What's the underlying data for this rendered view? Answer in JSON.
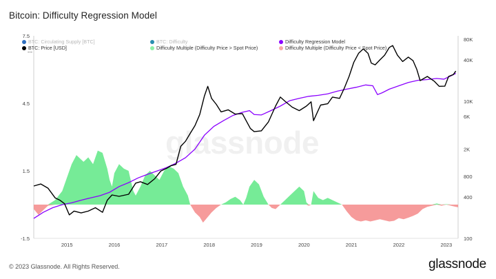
{
  "title": "Bitcoin: Difficulty Regression Model",
  "footer": {
    "copyright": "© 2023 Glassnode. All Rights Reserved.",
    "brand": "glassnode"
  },
  "watermark": "glassnode",
  "legend": [
    {
      "label": "BTC: Circulating Supply [BTC]",
      "color": "#2f6fbf",
      "muted": true
    },
    {
      "label": "BTC: Difficulty",
      "color": "#2a8fb0",
      "muted": true
    },
    {
      "label": "Difficulty Regression Model",
      "color": "#8a00ff",
      "muted": false
    },
    {
      "label": "BTC: Price [USD]",
      "color": "#000000",
      "muted": false
    },
    {
      "label": "Difficulty Multiple (Difficulty Price > Spot Price)",
      "color": "#8ef0a6",
      "muted": false
    },
    {
      "label": "Difficulty Multiple (Difficulty Price < Spot Price)",
      "color": "#f8a8a8",
      "muted": false
    }
  ],
  "legend_dash": "---",
  "colors": {
    "price": "#000000",
    "model": "#8a00ff",
    "positive": "#5ee885",
    "negative": "#f48a8a",
    "axis_text": "#444444",
    "grid": "#f0f0f0"
  },
  "chart_data": {
    "type": "line",
    "x_ticks": [
      "2015",
      "2016",
      "2017",
      "2018",
      "2019",
      "2020",
      "2021",
      "2022",
      "2023"
    ],
    "x_range": [
      2014.3,
      2023.25
    ],
    "left_axis": {
      "ticks": [
        "7.5",
        "4.5",
        "1.5",
        "-1.5"
      ],
      "values": [
        7.5,
        4.5,
        1.5,
        -1.5
      ],
      "range": [
        -1.5,
        7.5
      ]
    },
    "right_axis": {
      "scale": "log",
      "ticks": [
        "80K",
        "40K",
        "10K",
        "6K",
        "2K",
        "800",
        "400",
        "100"
      ],
      "values": [
        80000,
        40000,
        10000,
        6000,
        2000,
        800,
        400,
        100
      ],
      "range": [
        100,
        90000
      ]
    },
    "series": [
      {
        "name": "BTC: Price [USD]",
        "axis": "right",
        "points": [
          [
            2014.3,
            580
          ],
          [
            2014.45,
            620
          ],
          [
            2014.6,
            540
          ],
          [
            2014.75,
            390
          ],
          [
            2014.85,
            360
          ],
          [
            2014.95,
            320
          ],
          [
            2015.05,
            220
          ],
          [
            2015.15,
            250
          ],
          [
            2015.3,
            235
          ],
          [
            2015.45,
            250
          ],
          [
            2015.6,
            280
          ],
          [
            2015.75,
            240
          ],
          [
            2015.85,
            360
          ],
          [
            2015.95,
            430
          ],
          [
            2016.1,
            410
          ],
          [
            2016.3,
            440
          ],
          [
            2016.45,
            640
          ],
          [
            2016.55,
            670
          ],
          [
            2016.7,
            610
          ],
          [
            2016.85,
            740
          ],
          [
            2016.98,
            960
          ],
          [
            2017.1,
            1050
          ],
          [
            2017.2,
            1150
          ],
          [
            2017.3,
            1200
          ],
          [
            2017.4,
            2200
          ],
          [
            2017.5,
            2600
          ],
          [
            2017.6,
            3400
          ],
          [
            2017.7,
            4400
          ],
          [
            2017.8,
            6400
          ],
          [
            2017.9,
            12000
          ],
          [
            2017.97,
            16500
          ],
          [
            2018.05,
            11000
          ],
          [
            2018.15,
            9000
          ],
          [
            2018.25,
            7000
          ],
          [
            2018.4,
            7500
          ],
          [
            2018.55,
            6500
          ],
          [
            2018.7,
            6600
          ],
          [
            2018.87,
            4000
          ],
          [
            2018.95,
            3600
          ],
          [
            2019.1,
            3700
          ],
          [
            2019.25,
            5000
          ],
          [
            2019.4,
            8500
          ],
          [
            2019.5,
            11500
          ],
          [
            2019.6,
            10000
          ],
          [
            2019.75,
            8200
          ],
          [
            2019.9,
            7300
          ],
          [
            2020.05,
            8500
          ],
          [
            2020.15,
            9800
          ],
          [
            2020.2,
            5200
          ],
          [
            2020.35,
            8800
          ],
          [
            2020.5,
            9200
          ],
          [
            2020.6,
            11500
          ],
          [
            2020.75,
            11000
          ],
          [
            2020.85,
            15500
          ],
          [
            2020.95,
            23000
          ],
          [
            2021.05,
            37000
          ],
          [
            2021.15,
            50000
          ],
          [
            2021.25,
            58000
          ],
          [
            2021.35,
            50000
          ],
          [
            2021.42,
            36000
          ],
          [
            2021.5,
            34000
          ],
          [
            2021.6,
            40000
          ],
          [
            2021.7,
            47000
          ],
          [
            2021.8,
            61000
          ],
          [
            2021.87,
            65000
          ],
          [
            2021.97,
            47000
          ],
          [
            2022.08,
            38000
          ],
          [
            2022.2,
            44000
          ],
          [
            2022.3,
            39000
          ],
          [
            2022.38,
            29000
          ],
          [
            2022.45,
            20000
          ],
          [
            2022.6,
            23000
          ],
          [
            2022.75,
            19500
          ],
          [
            2022.85,
            16500
          ],
          [
            2022.97,
            16600
          ],
          [
            2023.05,
            23000
          ],
          [
            2023.15,
            24500
          ],
          [
            2023.2,
            27500
          ]
        ]
      },
      {
        "name": "Difficulty Regression Model",
        "axis": "right",
        "points": [
          [
            2014.3,
            195
          ],
          [
            2014.5,
            240
          ],
          [
            2014.7,
            280
          ],
          [
            2014.9,
            310
          ],
          [
            2015.1,
            330
          ],
          [
            2015.3,
            360
          ],
          [
            2015.5,
            390
          ],
          [
            2015.7,
            420
          ],
          [
            2015.9,
            470
          ],
          [
            2016.1,
            570
          ],
          [
            2016.3,
            650
          ],
          [
            2016.5,
            760
          ],
          [
            2016.7,
            860
          ],
          [
            2016.9,
            960
          ],
          [
            2017.1,
            1080
          ],
          [
            2017.3,
            1250
          ],
          [
            2017.5,
            1500
          ],
          [
            2017.7,
            2000
          ],
          [
            2017.9,
            3200
          ],
          [
            2018.1,
            4300
          ],
          [
            2018.3,
            5200
          ],
          [
            2018.5,
            6200
          ],
          [
            2018.7,
            6900
          ],
          [
            2018.85,
            7300
          ],
          [
            2018.95,
            6400
          ],
          [
            2019.1,
            6300
          ],
          [
            2019.3,
            7300
          ],
          [
            2019.5,
            8500
          ],
          [
            2019.7,
            10200
          ],
          [
            2019.9,
            11000
          ],
          [
            2020.1,
            11800
          ],
          [
            2020.3,
            12200
          ],
          [
            2020.5,
            12800
          ],
          [
            2020.7,
            14000
          ],
          [
            2020.9,
            15000
          ],
          [
            2021.1,
            16000
          ],
          [
            2021.3,
            17300
          ],
          [
            2021.45,
            16800
          ],
          [
            2021.55,
            12500
          ],
          [
            2021.65,
            13300
          ],
          [
            2021.8,
            15000
          ],
          [
            2022.0,
            16800
          ],
          [
            2022.2,
            18800
          ],
          [
            2022.4,
            20200
          ],
          [
            2022.6,
            20700
          ],
          [
            2022.8,
            21500
          ],
          [
            2022.95,
            21000
          ],
          [
            2023.1,
            23500
          ],
          [
            2023.2,
            25500
          ]
        ]
      },
      {
        "name": "Difficulty Multiple",
        "axis": "left",
        "points": [
          [
            2014.3,
            -0.2
          ],
          [
            2014.4,
            -0.45
          ],
          [
            2014.5,
            -0.25
          ],
          [
            2014.6,
            -0.05
          ],
          [
            2014.75,
            0.2
          ],
          [
            2014.9,
            0.6
          ],
          [
            2015.0,
            1.2
          ],
          [
            2015.1,
            1.8
          ],
          [
            2015.2,
            2.2
          ],
          [
            2015.35,
            1.9
          ],
          [
            2015.45,
            2.1
          ],
          [
            2015.55,
            1.8
          ],
          [
            2015.65,
            2.4
          ],
          [
            2015.75,
            2.3
          ],
          [
            2015.85,
            1.6
          ],
          [
            2015.9,
            1.1
          ],
          [
            2015.95,
            0.8
          ],
          [
            2016.0,
            1.4
          ],
          [
            2016.1,
            1.8
          ],
          [
            2016.2,
            1.6
          ],
          [
            2016.3,
            1.5
          ],
          [
            2016.4,
            0.6
          ],
          [
            2016.45,
            0.4
          ],
          [
            2016.55,
            0.8
          ],
          [
            2016.65,
            1.3
          ],
          [
            2016.75,
            1.5
          ],
          [
            2016.85,
            1.3
          ],
          [
            2016.95,
            1.1
          ],
          [
            2017.05,
            1.5
          ],
          [
            2017.15,
            1.7
          ],
          [
            2017.25,
            1.6
          ],
          [
            2017.35,
            1.4
          ],
          [
            2017.45,
            0.8
          ],
          [
            2017.55,
            0.4
          ],
          [
            2017.6,
            0.0
          ],
          [
            2017.7,
            -0.35
          ],
          [
            2017.8,
            -0.55
          ],
          [
            2017.87,
            -0.8
          ],
          [
            2017.95,
            -0.6
          ],
          [
            2018.05,
            -0.35
          ],
          [
            2018.15,
            -0.15
          ],
          [
            2018.25,
            0.0
          ],
          [
            2018.35,
            0.1
          ],
          [
            2018.45,
            0.25
          ],
          [
            2018.55,
            0.35
          ],
          [
            2018.65,
            0.2
          ],
          [
            2018.72,
            0.0
          ],
          [
            2018.78,
            0.3
          ],
          [
            2018.85,
            0.8
          ],
          [
            2018.95,
            1.1
          ],
          [
            2019.05,
            0.9
          ],
          [
            2019.15,
            0.35
          ],
          [
            2019.25,
            0.0
          ],
          [
            2019.32,
            -0.15
          ],
          [
            2019.4,
            -0.2
          ],
          [
            2019.5,
            0.0
          ],
          [
            2019.6,
            0.2
          ],
          [
            2019.7,
            0.4
          ],
          [
            2019.8,
            0.6
          ],
          [
            2019.9,
            0.8
          ],
          [
            2020.0,
            0.6
          ],
          [
            2020.05,
            0.1
          ],
          [
            2020.1,
            -0.05
          ],
          [
            2020.15,
            0.0
          ],
          [
            2020.2,
            0.6
          ],
          [
            2020.3,
            0.3
          ],
          [
            2020.4,
            0.2
          ],
          [
            2020.5,
            0.3
          ],
          [
            2020.6,
            0.2
          ],
          [
            2020.7,
            0.1
          ],
          [
            2020.8,
            0.0
          ],
          [
            2020.9,
            -0.3
          ],
          [
            2021.0,
            -0.55
          ],
          [
            2021.1,
            -0.7
          ],
          [
            2021.2,
            -0.75
          ],
          [
            2021.3,
            -0.7
          ],
          [
            2021.4,
            -0.75
          ],
          [
            2021.5,
            -0.7
          ],
          [
            2021.6,
            -0.65
          ],
          [
            2021.7,
            -0.7
          ],
          [
            2021.8,
            -0.75
          ],
          [
            2021.9,
            -0.72
          ],
          [
            2022.0,
            -0.6
          ],
          [
            2022.1,
            -0.65
          ],
          [
            2022.2,
            -0.58
          ],
          [
            2022.3,
            -0.5
          ],
          [
            2022.4,
            -0.4
          ],
          [
            2022.5,
            -0.2
          ],
          [
            2022.6,
            -0.1
          ],
          [
            2022.7,
            -0.05
          ],
          [
            2022.8,
            0.05
          ],
          [
            2022.9,
            -0.05
          ],
          [
            2023.0,
            0.02
          ],
          [
            2023.1,
            -0.05
          ],
          [
            2023.2,
            -0.1
          ],
          [
            2023.25,
            -0.12
          ]
        ]
      }
    ],
    "grid": false,
    "legend_position": "top"
  }
}
